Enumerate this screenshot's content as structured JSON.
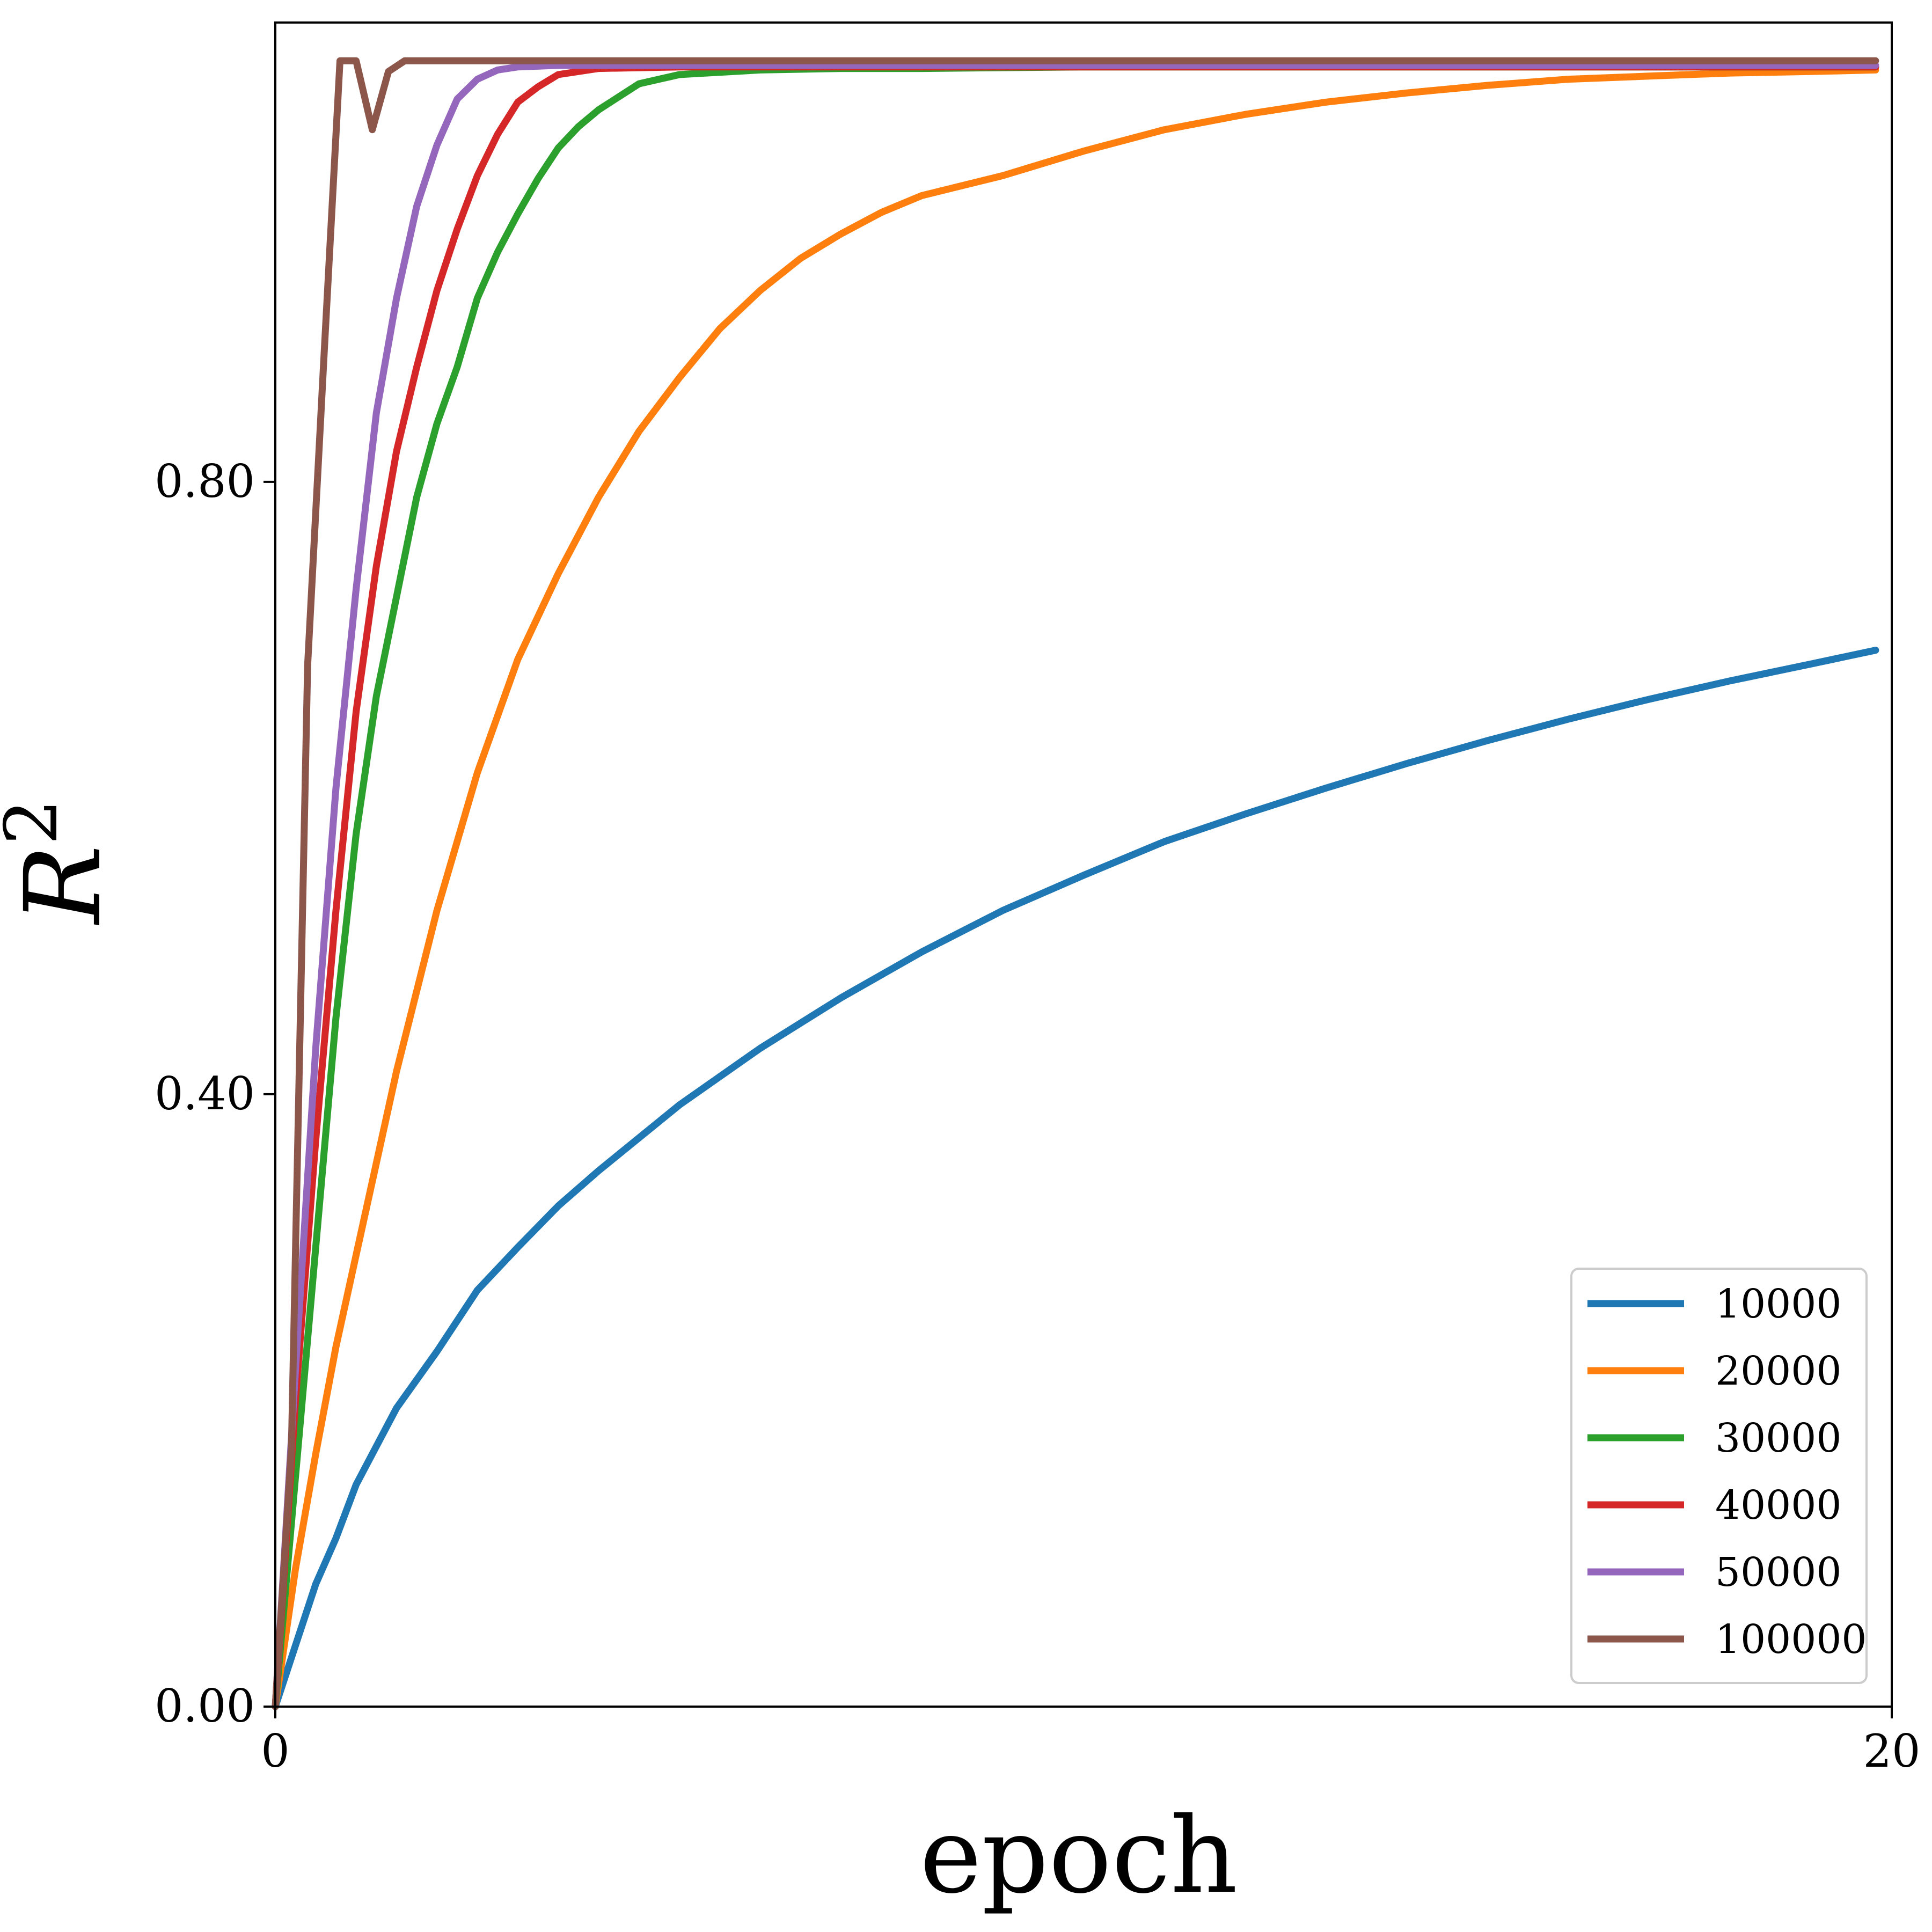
{
  "chart_data": {
    "type": "line",
    "title": "",
    "xlabel": "epoch",
    "ylabel": "R",
    "ylabel_superscript": "2",
    "xlim": [
      0,
      20
    ],
    "ylim": [
      0,
      1.1
    ],
    "x_ticks": [
      0,
      20
    ],
    "x_tick_labels": [
      "0",
      "20"
    ],
    "y_ticks": [
      0.0,
      0.4,
      0.8
    ],
    "y_tick_labels": [
      "0.00",
      "0.40",
      "0.80"
    ],
    "grid": false,
    "legend_position": "bottom-right",
    "series": [
      {
        "name": "10000",
        "color": "#1f77b4",
        "x": [
          0,
          0.25,
          0.5,
          0.75,
          1,
          1.5,
          2,
          2.5,
          3,
          3.5,
          4,
          5,
          6,
          7,
          8,
          9,
          10,
          11,
          12,
          13,
          14,
          15,
          16,
          17,
          18,
          19,
          19.8
        ],
        "y": [
          0,
          0.04,
          0.08,
          0.11,
          0.145,
          0.195,
          0.232,
          0.272,
          0.3,
          0.327,
          0.35,
          0.393,
          0.43,
          0.463,
          0.493,
          0.52,
          0.543,
          0.565,
          0.583,
          0.6,
          0.616,
          0.631,
          0.645,
          0.658,
          0.67,
          0.681,
          0.69
        ]
      },
      {
        "name": "20000",
        "color": "#ff7f0e",
        "x": [
          0,
          0.25,
          0.5,
          0.75,
          1,
          1.5,
          2,
          2.5,
          3,
          3.5,
          4,
          4.5,
          5,
          5.5,
          6,
          6.5,
          7,
          7.5,
          8,
          9,
          10,
          11,
          12,
          13,
          14,
          15,
          16,
          17,
          18,
          19,
          19.8
        ],
        "y": [
          0,
          0.09,
          0.165,
          0.235,
          0.295,
          0.415,
          0.52,
          0.61,
          0.684,
          0.74,
          0.79,
          0.833,
          0.868,
          0.9,
          0.925,
          0.946,
          0.962,
          0.976,
          0.987,
          1.0,
          1.016,
          1.03,
          1.04,
          1.048,
          1.054,
          1.059,
          1.063,
          1.065,
          1.067,
          1.068,
          1.069
        ]
      },
      {
        "name": "30000",
        "color": "#2ca02c",
        "x": [
          0,
          0.25,
          0.5,
          0.75,
          1,
          1.25,
          1.5,
          1.75,
          2,
          2.25,
          2.5,
          2.75,
          3,
          3.25,
          3.5,
          3.75,
          4,
          4.5,
          5,
          6,
          7,
          8,
          10,
          19.8
        ],
        "y": [
          0,
          0.15,
          0.3,
          0.45,
          0.57,
          0.66,
          0.725,
          0.79,
          0.838,
          0.875,
          0.92,
          0.95,
          0.975,
          0.998,
          1.018,
          1.032,
          1.043,
          1.06,
          1.066,
          1.069,
          1.07,
          1.07,
          1.071,
          1.071
        ]
      },
      {
        "name": "40000",
        "color": "#d62728",
        "x": [
          0,
          0.25,
          0.5,
          0.75,
          1,
          1.25,
          1.5,
          1.75,
          2,
          2.25,
          2.5,
          2.75,
          3,
          3.25,
          3.5,
          4,
          5,
          19.8
        ],
        "y": [
          0,
          0.2,
          0.37,
          0.52,
          0.65,
          0.745,
          0.82,
          0.875,
          0.925,
          0.965,
          1.0,
          1.027,
          1.048,
          1.058,
          1.066,
          1.07,
          1.071,
          1.071
        ]
      },
      {
        "name": "50000",
        "color": "#9467bd",
        "x": [
          0,
          0.25,
          0.5,
          0.75,
          1,
          1.25,
          1.5,
          1.75,
          2,
          2.25,
          2.5,
          2.75,
          3,
          3.5,
          4,
          19.8
        ],
        "y": [
          0,
          0.22,
          0.43,
          0.6,
          0.73,
          0.845,
          0.92,
          0.98,
          1.02,
          1.05,
          1.063,
          1.069,
          1.071,
          1.072,
          1.072,
          1.072
        ]
      },
      {
        "name": "100000",
        "color": "#8c564b",
        "x": [
          0,
          0.2,
          0.4,
          0.6,
          0.8,
          1.0,
          1.2,
          1.4,
          1.6,
          1.8,
          2.0,
          19.8
        ],
        "y": [
          0,
          0.17,
          0.68,
          0.88,
          1.075,
          1.075,
          1.03,
          1.068,
          1.075,
          1.075,
          1.075,
          1.075
        ]
      }
    ]
  }
}
